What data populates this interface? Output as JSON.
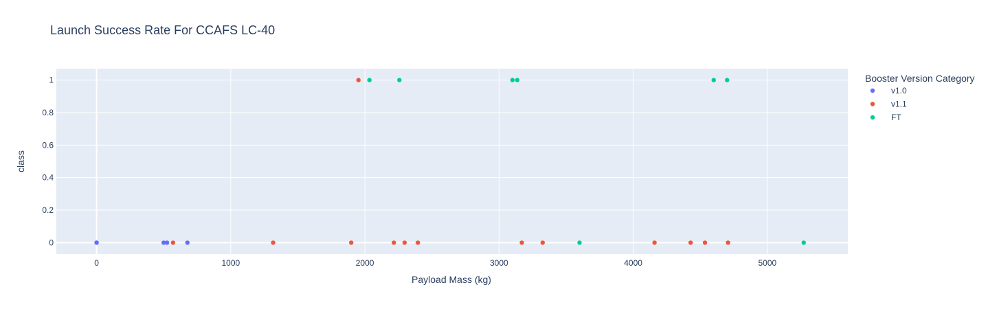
{
  "chart_data": {
    "type": "scatter",
    "title": "Launch Success Rate For CCAFS LC-40",
    "xlabel": "Payload Mass (kg)",
    "ylabel": "class",
    "xlim": [
      -300,
      5600
    ],
    "ylim": [
      -0.07,
      1.07
    ],
    "x_ticks": [
      0,
      1000,
      2000,
      3000,
      4000,
      5000
    ],
    "y_ticks": [
      0,
      0.2,
      0.4,
      0.6,
      0.8,
      1
    ],
    "grid": true,
    "legend_title": "Booster Version Category",
    "legend_position": "right",
    "series": [
      {
        "name": "v1.0",
        "color": "#636efa",
        "points": [
          [
            0,
            0
          ],
          [
            0,
            0
          ],
          [
            500,
            0
          ],
          [
            525,
            0
          ],
          [
            677,
            0
          ]
        ]
      },
      {
        "name": "v1.1",
        "color": "#ef553b",
        "points": [
          [
            570,
            0
          ],
          [
            1316,
            0
          ],
          [
            1898,
            0
          ],
          [
            1952,
            1
          ],
          [
            2216,
            0
          ],
          [
            2296,
            0
          ],
          [
            2395,
            0
          ],
          [
            3170,
            0
          ],
          [
            3325,
            0
          ],
          [
            4159,
            0
          ],
          [
            4428,
            0
          ],
          [
            4535,
            0
          ],
          [
            4707,
            0
          ]
        ]
      },
      {
        "name": "FT",
        "color": "#00cc96",
        "points": [
          [
            2034,
            1
          ],
          [
            2257,
            1
          ],
          [
            3100,
            1
          ],
          [
            3136,
            1
          ],
          [
            3600,
            0
          ],
          [
            4600,
            1
          ],
          [
            4700,
            1
          ],
          [
            5271,
            0
          ]
        ]
      }
    ]
  }
}
